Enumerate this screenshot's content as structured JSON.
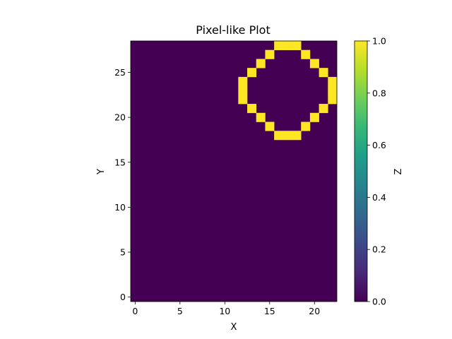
{
  "chart_data": {
    "type": "heatmap",
    "title": "Pixel-like Plot",
    "xlabel": "X",
    "ylabel": "Y",
    "colorbar_label": "Z",
    "grid": false,
    "x_range": [
      -0.5,
      22.5
    ],
    "y_range": [
      -0.5,
      28.5
    ],
    "x_ticks": [
      0,
      5,
      10,
      15,
      20
    ],
    "y_ticks": [
      0,
      5,
      10,
      15,
      20,
      25
    ],
    "colorbar_range": [
      0.0,
      1.0
    ],
    "colorbar_ticks": [
      "0.0",
      "0.2",
      "0.4",
      "0.6",
      "0.8",
      "1.0"
    ],
    "colormap": "viridis",
    "background_value": 0.0,
    "ones": [
      [
        16,
        28
      ],
      [
        17,
        28
      ],
      [
        18,
        28
      ],
      [
        15,
        27
      ],
      [
        19,
        27
      ],
      [
        14,
        26
      ],
      [
        20,
        26
      ],
      [
        13,
        25
      ],
      [
        21,
        25
      ],
      [
        12,
        24
      ],
      [
        22,
        24
      ],
      [
        12,
        23
      ],
      [
        22,
        23
      ],
      [
        12,
        22
      ],
      [
        22,
        22
      ],
      [
        13,
        21
      ],
      [
        21,
        21
      ],
      [
        14,
        20
      ],
      [
        20,
        20
      ],
      [
        15,
        19
      ],
      [
        19,
        19
      ],
      [
        16,
        18
      ],
      [
        17,
        18
      ],
      [
        18,
        18
      ]
    ]
  },
  "colors": {
    "low": "#440154",
    "high": "#fde725"
  }
}
